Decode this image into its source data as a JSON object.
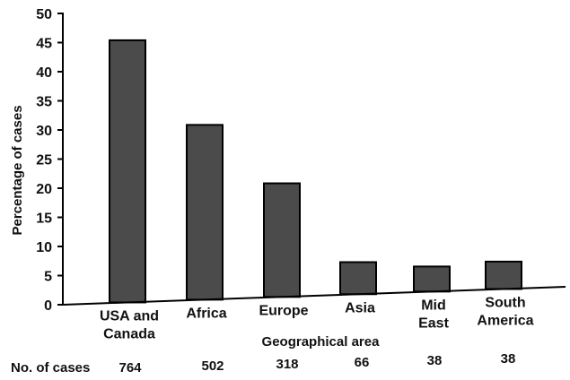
{
  "chart_data": {
    "type": "bar",
    "categories": [
      [
        "USA and",
        "Canada"
      ],
      [
        "Africa"
      ],
      [
        "Europe"
      ],
      [
        "Asia"
      ],
      [
        "Mid",
        "East"
      ],
      [
        "South",
        "America"
      ]
    ],
    "values": [
      45,
      30,
      19.5,
      5.5,
      4.3,
      4.7
    ],
    "case_counts": [
      "764",
      "502",
      "318",
      "66",
      "38",
      "38"
    ],
    "cases_label": "No. of cases",
    "xlabel": "Geographical area",
    "ylabel": "Percentage of cases",
    "ylim": [
      0,
      50
    ],
    "yticks": [
      "0",
      "5",
      "10",
      "15",
      "20",
      "25",
      "30",
      "35",
      "40",
      "45",
      "50"
    ],
    "grid": false,
    "colors": {
      "bar": "#4b4b4b",
      "bar_edge": "#000000",
      "axis": "#000000"
    }
  }
}
